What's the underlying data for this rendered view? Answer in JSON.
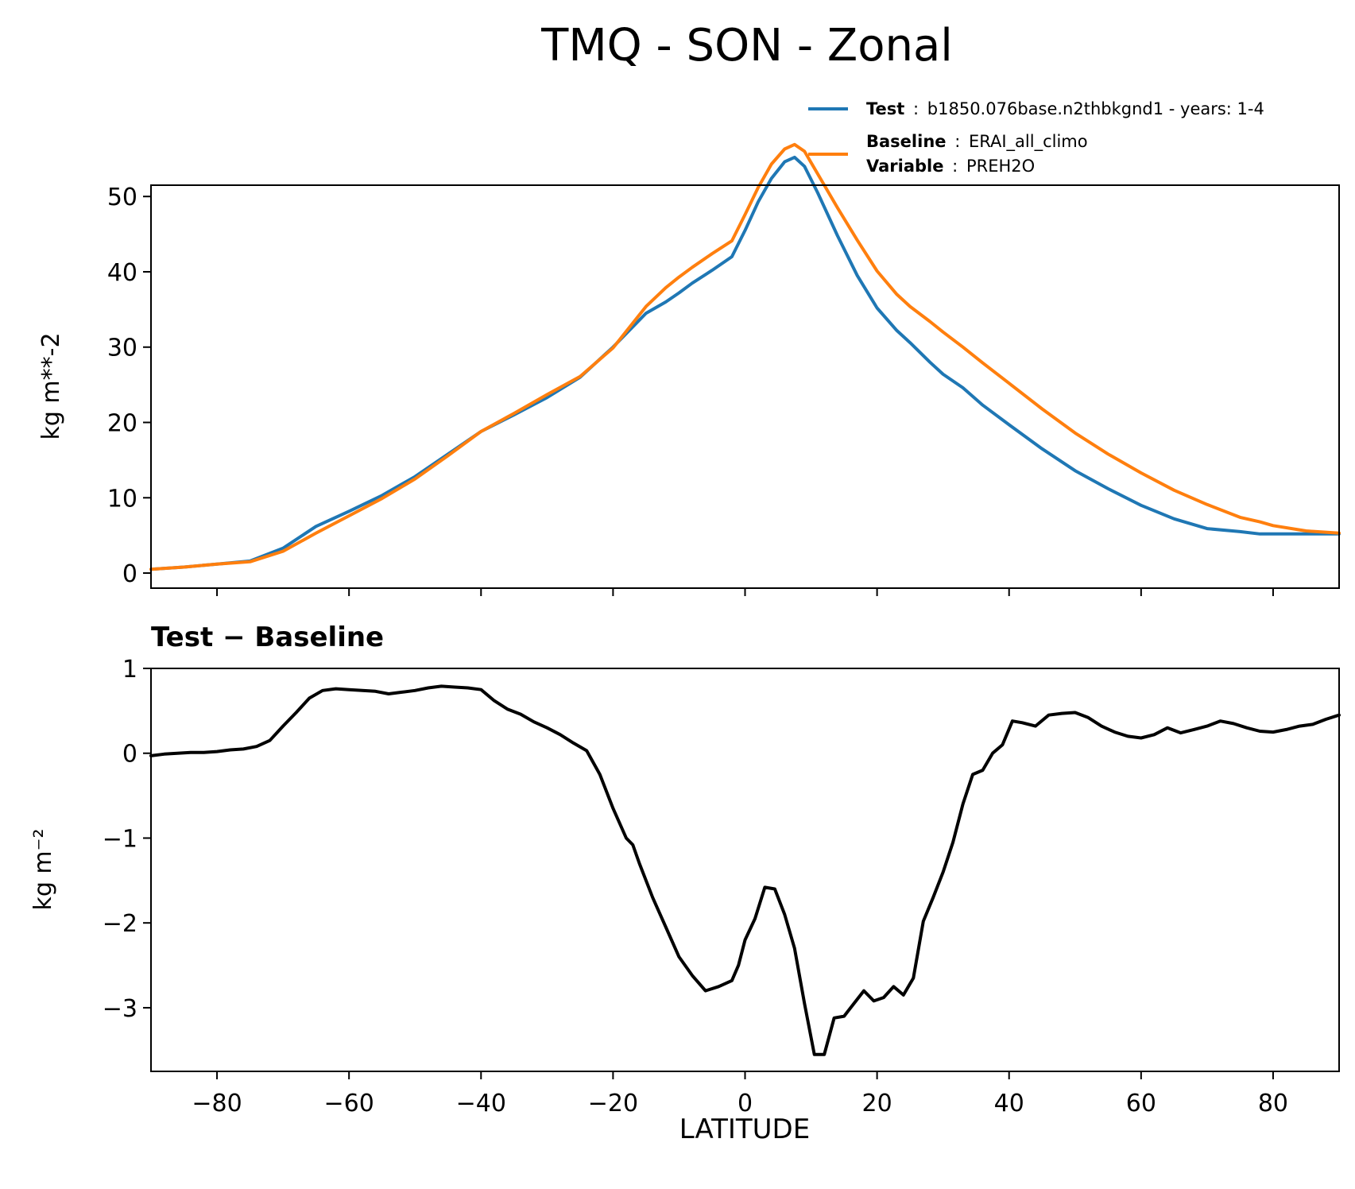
{
  "figure": {
    "title": "TMQ - SON - Zonal",
    "xlabel": "LATITUDE"
  },
  "legend": {
    "test_key": "Test",
    "test_value": "b1850.076base.n2thbkgnd1 - years: 1-4",
    "baseline_key": "Baseline",
    "baseline_value": "ERAI_all_climo",
    "variable_key": "Variable",
    "variable_value": "PREH2O",
    "sep": ":"
  },
  "chart_data": [
    {
      "type": "line",
      "title": "",
      "xlabel": "",
      "ylabel": "kg m**-2",
      "xlim": [
        -90,
        90
      ],
      "ylim": [
        -2,
        51.5
      ],
      "xticks": [
        -80,
        -60,
        -40,
        -20,
        0,
        20,
        40,
        60,
        80
      ],
      "yticks": [
        0,
        10,
        20,
        30,
        40,
        50
      ],
      "ytick_labels": [
        "0",
        "10",
        "20",
        "30",
        "40",
        "50"
      ],
      "grid": false,
      "legend_position": "above-right",
      "series": [
        {
          "name": "Test",
          "color": "#1f77b4",
          "x": [
            -90,
            -85,
            -80,
            -75,
            -70,
            -65,
            -60,
            -55,
            -50,
            -45,
            -40,
            -35,
            -30,
            -25,
            -20,
            -15,
            -12,
            -10,
            -8,
            -5,
            -2,
            0,
            2,
            4,
            6,
            7.5,
            9,
            11,
            14,
            17,
            20,
            23,
            25,
            28,
            30,
            33,
            36,
            40,
            45,
            50,
            55,
            60,
            65,
            70,
            75,
            78,
            80,
            85,
            90
          ],
          "values": [
            0.5,
            0.8,
            1.2,
            1.6,
            3.3,
            6.2,
            8.2,
            10.3,
            12.8,
            15.8,
            18.8,
            21.0,
            23.3,
            26.0,
            30.0,
            34.5,
            36.0,
            37.2,
            38.5,
            40.2,
            42.0,
            45.5,
            49.3,
            52.4,
            54.6,
            55.2,
            54.0,
            50.5,
            44.8,
            39.5,
            35.2,
            32.2,
            30.6,
            28.0,
            26.4,
            24.6,
            22.3,
            19.7,
            16.5,
            13.6,
            11.2,
            9.0,
            7.2,
            5.9,
            5.5,
            5.2,
            5.2,
            5.2,
            5.2
          ]
        },
        {
          "name": "Baseline",
          "color": "#ff7f0e",
          "x": [
            -90,
            -85,
            -80,
            -75,
            -70,
            -65,
            -60,
            -55,
            -50,
            -45,
            -40,
            -35,
            -30,
            -25,
            -20,
            -15,
            -12,
            -10,
            -8,
            -5,
            -2,
            0,
            2,
            4,
            6,
            7.5,
            9,
            11,
            14,
            17,
            20,
            23,
            25,
            28,
            30,
            33,
            36,
            40,
            45,
            50,
            55,
            60,
            65,
            70,
            75,
            78,
            80,
            85,
            90
          ],
          "values": [
            0.5,
            0.8,
            1.2,
            1.5,
            2.9,
            5.3,
            7.6,
            9.9,
            12.5,
            15.6,
            18.8,
            21.2,
            23.7,
            26.1,
            29.9,
            35.4,
            37.9,
            39.3,
            40.6,
            42.4,
            44.1,
            47.6,
            51.2,
            54.3,
            56.3,
            56.9,
            56.0,
            53.0,
            48.5,
            44.2,
            40.1,
            37.0,
            35.4,
            33.4,
            32.0,
            30.0,
            27.9,
            25.2,
            21.8,
            18.6,
            15.8,
            13.3,
            11.0,
            9.1,
            7.4,
            6.8,
            6.3,
            5.6,
            5.3
          ]
        }
      ]
    },
    {
      "type": "line",
      "title": "Test − Baseline",
      "xlabel": "LATITUDE",
      "ylabel": "kg m⁻²",
      "xlim": [
        -90,
        90
      ],
      "ylim": [
        -3.75,
        1.0
      ],
      "xticks": [
        -80,
        -60,
        -40,
        -20,
        0,
        20,
        40,
        60,
        80
      ],
      "xtick_labels": [
        "−80",
        "−60",
        "−40",
        "−20",
        "0",
        "20",
        "40",
        "60",
        "80"
      ],
      "yticks": [
        1,
        0,
        -1,
        -2,
        -3
      ],
      "ytick_labels": [
        "1",
        "0",
        "−1",
        "−2",
        "−3"
      ],
      "grid": false,
      "series": [
        {
          "name": "Test − Baseline",
          "color": "#000000",
          "x": [
            -90,
            -88,
            -86,
            -84,
            -82,
            -80,
            -78,
            -76,
            -74,
            -72,
            -70,
            -68,
            -66,
            -64,
            -62,
            -60,
            -58,
            -56,
            -54,
            -52,
            -50,
            -48,
            -46,
            -44,
            -42,
            -40,
            -38,
            -36,
            -34,
            -32,
            -30,
            -28,
            -26,
            -24,
            -22,
            -20,
            -18,
            -17,
            -16,
            -14,
            -12,
            -10,
            -8,
            -6,
            -4,
            -2,
            -1,
            0,
            1.5,
            3,
            4.5,
            6,
            7.5,
            9,
            10.5,
            12,
            13.5,
            15,
            16.5,
            18,
            19.5,
            21,
            22.5,
            24,
            25.5,
            27,
            28.5,
            30,
            31.5,
            33,
            34.5,
            36,
            37.5,
            39,
            40.5,
            42,
            44,
            46,
            48,
            50,
            52,
            54,
            56,
            58,
            60,
            62,
            64,
            66,
            68,
            70,
            72,
            74,
            76,
            78,
            80,
            82,
            84,
            86,
            88,
            90
          ],
          "values": [
            -0.03,
            -0.01,
            0.0,
            0.01,
            0.01,
            0.02,
            0.04,
            0.05,
            0.08,
            0.15,
            0.32,
            0.48,
            0.65,
            0.74,
            0.76,
            0.75,
            0.74,
            0.73,
            0.7,
            0.72,
            0.74,
            0.77,
            0.79,
            0.78,
            0.77,
            0.75,
            0.62,
            0.52,
            0.46,
            0.37,
            0.3,
            0.22,
            0.12,
            0.03,
            -0.25,
            -0.65,
            -1.0,
            -1.08,
            -1.3,
            -1.7,
            -2.05,
            -2.4,
            -2.62,
            -2.8,
            -2.75,
            -2.68,
            -2.5,
            -2.2,
            -1.95,
            -1.58,
            -1.6,
            -1.9,
            -2.3,
            -2.95,
            -3.55,
            -3.55,
            -3.12,
            -3.1,
            -2.95,
            -2.8,
            -2.92,
            -2.88,
            -2.75,
            -2.85,
            -2.65,
            -1.98,
            -1.7,
            -1.4,
            -1.05,
            -0.6,
            -0.25,
            -0.2,
            0.0,
            0.1,
            0.38,
            0.36,
            0.32,
            0.45,
            0.47,
            0.48,
            0.42,
            0.32,
            0.25,
            0.2,
            0.18,
            0.22,
            0.3,
            0.24,
            0.28,
            0.32,
            0.38,
            0.35,
            0.3,
            0.26,
            0.25,
            0.28,
            0.32,
            0.34,
            0.4,
            0.45
          ]
        }
      ]
    }
  ]
}
